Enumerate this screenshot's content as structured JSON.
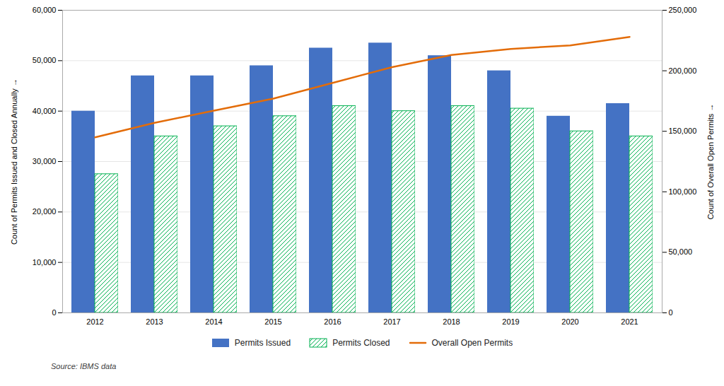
{
  "chart_data": {
    "type": "bar",
    "categories": [
      "2012",
      "2013",
      "2014",
      "2015",
      "2016",
      "2017",
      "2018",
      "2019",
      "2020",
      "2021"
    ],
    "series": [
      {
        "name": "Permits Issued",
        "type": "bar",
        "color": "#4472C4",
        "values": [
          40000,
          47000,
          47000,
          49000,
          52500,
          53500,
          51000,
          48000,
          39000,
          41500
        ]
      },
      {
        "name": "Permits Closed",
        "type": "bar",
        "color": "#00B050",
        "values": [
          27500,
          35000,
          37000,
          39000,
          41000,
          40000,
          41000,
          40500,
          36000,
          35000
        ]
      },
      {
        "name": "Overall Open Permits",
        "type": "line",
        "color": "#E36C09",
        "axis": "y2",
        "values": [
          145000,
          157000,
          167000,
          177000,
          190000,
          203000,
          213000,
          218000,
          221000,
          228000
        ]
      }
    ],
    "ylabel": "Count of Permits Issued and Closed Annually",
    "y2label": "Count of Overall Open Permits",
    "ylim": [
      0,
      60000
    ],
    "yticks": [
      0,
      {
        "value": 10000,
        "label": "10,000"
      },
      {
        "value": 20000,
        "label": "20,000"
      },
      {
        "value": 30000,
        "label": "30,000"
      },
      {
        "value": 40000,
        "label": "40,000"
      },
      {
        "value": 50000,
        "label": "50,000"
      },
      {
        "value": 60000,
        "label": "60,000"
      }
    ],
    "y2lim": [
      0,
      250000
    ],
    "y2ticks": [
      0,
      {
        "value": 50000,
        "label": "50,000"
      },
      {
        "value": 100000,
        "label": "100,000"
      },
      {
        "value": 150000,
        "label": "150,000"
      },
      {
        "value": 200000,
        "label": "200,000"
      },
      {
        "value": 250000,
        "label": "250,000"
      }
    ],
    "grid": true,
    "legend": "bottom",
    "caption": "Source: IBMS data"
  }
}
